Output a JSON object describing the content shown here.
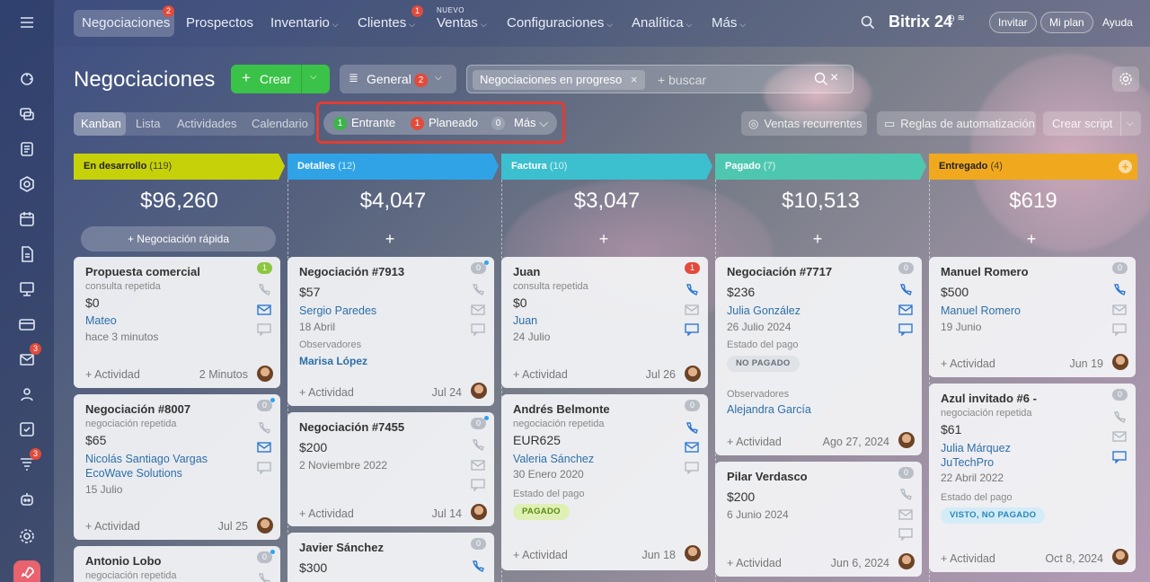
{
  "nav": {
    "items": [
      {
        "label": "Negociaciones",
        "badge": "2"
      },
      {
        "label": "Prospectos"
      },
      {
        "label": "Inventario",
        "chev": "⌵"
      },
      {
        "label": "Clientes",
        "chev": "⌵",
        "badge": "1"
      },
      {
        "label": "Ventas",
        "chev": "⌵",
        "tag": "NUEVO"
      },
      {
        "label": "Configuraciones",
        "chev": "⌵"
      },
      {
        "label": "Analítica",
        "chev": "⌵"
      },
      {
        "label": "Más",
        "chev": "⌵"
      }
    ],
    "logo": "Bitrix 24",
    "invite": "Invitar",
    "plan": "Mi plan",
    "help": "Ayuda"
  },
  "rail": {
    "badges": [
      "3",
      "3"
    ]
  },
  "page": {
    "title": "Negociaciones",
    "create": "Crear",
    "filter": "General",
    "filter_badge": "2",
    "search_tag": "Negociaciones en progreso",
    "search_placeholder": "+ buscar"
  },
  "views": [
    "Kanban",
    "Lista",
    "Actividades",
    "Calendario"
  ],
  "counters": [
    {
      "n": "1",
      "label": "Entrante",
      "color": "#3bb54a"
    },
    {
      "n": "1",
      "label": "Planeado",
      "color": "#e24b3b"
    },
    {
      "n": "0",
      "label": "Más ⌵",
      "color": "#9aa3b3"
    }
  ],
  "tools": {
    "recurring": "Ventas recurrentes",
    "rules": "Reglas de automatización",
    "script": "Crear script"
  },
  "columns": [
    {
      "name": "En desarrollo",
      "count": "(119)",
      "sum": "$96,260",
      "color": "#c7d10a",
      "quick": "+ Negociación rápida"
    },
    {
      "name": "Detalles",
      "count": "(12)",
      "sum": "$4,047",
      "color": "#2fa3e6",
      "plus": "+"
    },
    {
      "name": "Factura",
      "count": "(10)",
      "sum": "$3,047",
      "color": "#3cbfcf",
      "plus": "+"
    },
    {
      "name": "Pagado",
      "count": "(7)",
      "sum": "$10,513",
      "color": "#4ec7b0",
      "plus": "+"
    },
    {
      "name": "Entregado",
      "count": "(4)",
      "sum": "$619",
      "color": "#f0a91e",
      "plus": "+"
    }
  ],
  "cards": {
    "c1a": {
      "title": "Propuesta comercial",
      "sub": "consulta repetida",
      "value": "$0",
      "link": "Mateo",
      "date": "hace 3 minutos",
      "act": "+ Actividad",
      "adate": "2 Minutos",
      "badge": "1"
    },
    "c1b": {
      "title": "Negociación #8007",
      "sub": "negociación repetida",
      "value": "$65",
      "link": "Nicolás Santiago Vargas",
      "link2": "EcoWave Solutions",
      "date": "15 Julio",
      "act": "+ Actividad",
      "adate": "Jul 25",
      "badge": "0"
    },
    "c1c": {
      "title": "Antonio Lobo",
      "sub": "negociación repetida",
      "badge": "0"
    },
    "c2a": {
      "title": "Negociación #7913",
      "value": "$57",
      "link": "Sergio Paredes",
      "date": "18 Abril",
      "obs": "Observadores",
      "obslink": "Marisa López",
      "act": "+ Actividad",
      "adate": "Jul 24",
      "badge": "0"
    },
    "c2b": {
      "title": "Negociación #7455",
      "value": "$200",
      "date": "2 Noviembre 2022",
      "act": "+ Actividad",
      "adate": "Jul 14",
      "badge": "0"
    },
    "c2c": {
      "title": "Javier Sánchez",
      "value": "$300",
      "badge": "0"
    },
    "c3a": {
      "title": "Juan",
      "sub": "consulta repetida",
      "value": "$0",
      "link": "Juan",
      "date": "24 Julio",
      "act": "+ Actividad",
      "adate": "Jul 26",
      "badge": "1"
    },
    "c3b": {
      "title": "Andrés Belmonte",
      "sub": "negociación repetida",
      "value": "EUR625",
      "link": "Valeria Sánchez",
      "date": "30 Enero 2020",
      "pay_label": "Estado del pago",
      "pay": "PAGADO",
      "act": "+ Actividad",
      "adate": "Jun 18",
      "badge": "0"
    },
    "c4a": {
      "title": "Negociación #7717",
      "value": "$236",
      "link": "Julia González",
      "date": "26 Julio 2024",
      "pay_label": "Estado del pago",
      "pay": "NO PAGADO",
      "obs": "Observadores",
      "obslink": "Alejandra García",
      "act": "+ Actividad",
      "adate": "Ago 27, 2024",
      "badge": "0"
    },
    "c4b": {
      "title": "Pilar Verdasco",
      "value": "$200",
      "date": "6 Junio 2024",
      "act": "+ Actividad",
      "adate": "Jun 6, 2024",
      "badge": "0"
    },
    "c5a": {
      "title": "Manuel Romero",
      "value": "$500",
      "link": "Manuel Romero",
      "date": "19 Junio",
      "act": "+ Actividad",
      "adate": "Jun 19",
      "badge": "0"
    },
    "c5b": {
      "title": "Azul invitado #6 -",
      "sub": "negociación repetida",
      "value": "$61",
      "link": "Julia Márquez",
      "link2": "JuTechPro",
      "date": "22 Abril 2022",
      "pay_label": "Estado del pago",
      "pay": "VISTO, NO PAGADO",
      "act": "+ Actividad",
      "adate": "Oct 8, 2024",
      "badge": "0"
    }
  }
}
